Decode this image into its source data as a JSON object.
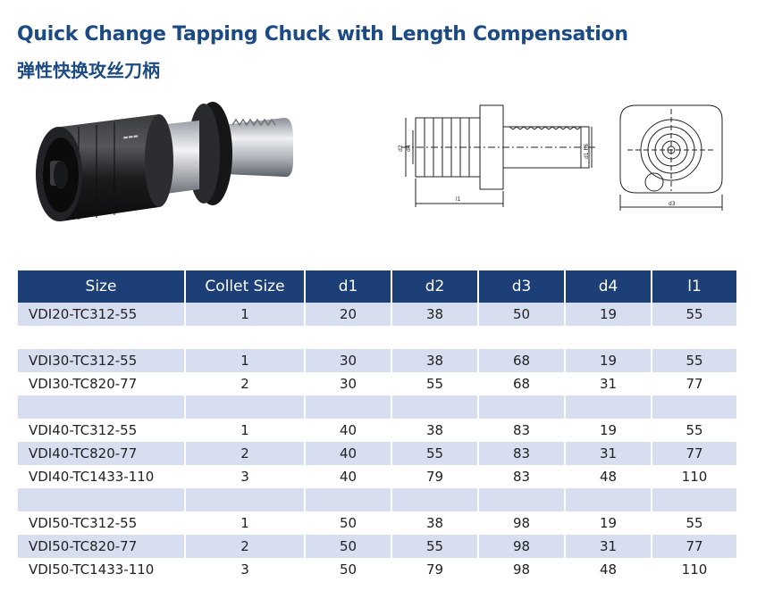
{
  "title_en": "Quick Change Tapping Chuck with Length Compensation",
  "title_cn": "弹性快换攻丝刀柄",
  "drawing_labels": {
    "d1": "d1 h6",
    "d2": "d2",
    "d3": "d3",
    "d4": "d4",
    "l1": "l1"
  },
  "table": {
    "headers": [
      "Size",
      "Collet Size",
      "d1",
      "d2",
      "d3",
      "d4",
      "l1"
    ],
    "rows": [
      {
        "size": "VDI20-TC312-55",
        "collet": "1",
        "d1": "20",
        "d2": "38",
        "d3": "50",
        "d4": "19",
        "l1": "55"
      },
      {
        "size": "VDI30-TC312-55",
        "collet": "1",
        "d1": "30",
        "d2": "38",
        "d3": "68",
        "d4": "19",
        "l1": "55"
      },
      {
        "size": "VDI30-TC820-77",
        "collet": "2",
        "d1": "30",
        "d2": "55",
        "d3": "68",
        "d4": "31",
        "l1": "77"
      },
      {
        "size": "VDI40-TC312-55",
        "collet": "1",
        "d1": "40",
        "d2": "38",
        "d3": "83",
        "d4": "19",
        "l1": "55"
      },
      {
        "size": "VDI40-TC820-77",
        "collet": "2",
        "d1": "40",
        "d2": "55",
        "d3": "83",
        "d4": "31",
        "l1": "77"
      },
      {
        "size": "VDI40-TC1433-110",
        "collet": "3",
        "d1": "40",
        "d2": "79",
        "d3": "83",
        "d4": "48",
        "l1": "110"
      },
      {
        "size": "VDI50-TC312-55",
        "collet": "1",
        "d1": "50",
        "d2": "38",
        "d3": "98",
        "d4": "19",
        "l1": "55"
      },
      {
        "size": "VDI50-TC820-77",
        "collet": "2",
        "d1": "50",
        "d2": "55",
        "d3": "98",
        "d4": "31",
        "l1": "77"
      },
      {
        "size": "VDI50-TC1433-110",
        "collet": "3",
        "d1": "50",
        "d2": "79",
        "d3": "98",
        "d4": "48",
        "l1": "110"
      }
    ]
  },
  "colors": {
    "title": "#1c4a84",
    "header_bg": "#1d3f77",
    "row_shade": "#d7deef"
  }
}
